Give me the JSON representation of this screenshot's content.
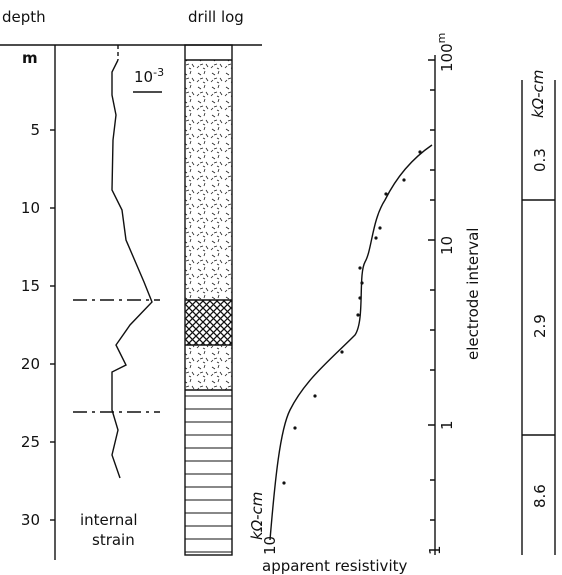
{
  "headers": {
    "depth": "depth",
    "drill_log": "drill log"
  },
  "depth_axis": {
    "unit": "m",
    "ticks": [
      5,
      10,
      15,
      20,
      25,
      30
    ]
  },
  "strain": {
    "unit_base": "10",
    "unit_exponent": "-3",
    "label_line1": "internal",
    "label_line2": "strain"
  },
  "resistivity": {
    "x_label": "apparent resistivity",
    "x_ticks": [
      "10",
      "1"
    ],
    "x_unit": "kΩ-cm",
    "y_label": "electrode interval",
    "y_ticks": [
      "100",
      "10",
      "1"
    ],
    "y_top_unit": "m"
  },
  "layers": {
    "unit": "kΩ-cm",
    "values": [
      "0.3",
      "2.9",
      "8.6"
    ]
  }
}
